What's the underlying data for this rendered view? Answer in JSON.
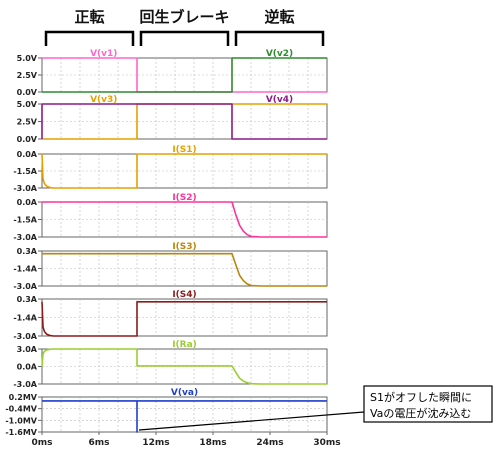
{
  "phases": [
    {
      "label": "正転",
      "t_start": 0,
      "t_end": 10
    },
    {
      "label": "回生ブレーキ",
      "t_start": 10,
      "t_end": 20
    },
    {
      "label": "逆転",
      "t_start": 20,
      "t_end": 30
    }
  ],
  "annotation": {
    "line1": "S1がオフした瞬間に",
    "line2": "Vaの電圧が沈み込む",
    "target_time_ms": 10
  },
  "chart_data": [
    {
      "type": "line",
      "xlim": [
        0,
        30
      ],
      "ylim": [
        0,
        5
      ],
      "yticks": [
        "5.0V",
        "2.5V",
        "0.0V"
      ],
      "grid": true,
      "series": [
        {
          "name": "V(v1)",
          "color": "#ff66cc",
          "x": [
            0,
            10,
            10,
            30
          ],
          "y": [
            5,
            5,
            0,
            0
          ]
        },
        {
          "name": "V(v2)",
          "color": "#2e8b2e",
          "x": [
            0,
            20,
            20,
            30
          ],
          "y": [
            0,
            0,
            5,
            5
          ]
        }
      ]
    },
    {
      "type": "line",
      "xlim": [
        0,
        30
      ],
      "ylim": [
        0,
        5
      ],
      "yticks": [
        "5.0V",
        "2.5V",
        "0.0V"
      ],
      "grid": true,
      "series": [
        {
          "name": "V(v3)",
          "color": "#e6a000",
          "x": [
            0,
            10,
            10,
            30
          ],
          "y": [
            0,
            0,
            5,
            5
          ]
        },
        {
          "name": "V(v4)",
          "color": "#8b1a8b",
          "x": [
            0,
            0,
            20,
            20,
            30
          ],
          "y": [
            0,
            5,
            5,
            0,
            0
          ]
        }
      ]
    },
    {
      "type": "line",
      "xlim": [
        0,
        30
      ],
      "ylim": [
        -3,
        0
      ],
      "yticks": [
        "0.0A",
        "-1.5A",
        "-3.0A"
      ],
      "grid": true,
      "series": [
        {
          "name": "I(S1)",
          "color": "#e6a000",
          "x": [
            0,
            0.1,
            0.25,
            0.5,
            0.8,
            1.2,
            2,
            10,
            10,
            30
          ],
          "y": [
            0,
            -2.2,
            -2.6,
            -2.85,
            -2.95,
            -3.0,
            -3.0,
            -3.0,
            0,
            0
          ]
        }
      ]
    },
    {
      "type": "line",
      "xlim": [
        0,
        30
      ],
      "ylim": [
        -3,
        0
      ],
      "yticks": [
        "0.0A",
        "-1.5A",
        "-3.0A"
      ],
      "grid": true,
      "series": [
        {
          "name": "I(S2)",
          "color": "#ff3399",
          "x": [
            0,
            20,
            20.4,
            20.8,
            21.2,
            21.6,
            22,
            23,
            30
          ],
          "y": [
            0,
            0,
            -1.1,
            -2.0,
            -2.5,
            -2.8,
            -2.95,
            -3.0,
            -3.0
          ]
        }
      ]
    },
    {
      "type": "line",
      "xlim": [
        0,
        30
      ],
      "ylim": [
        -3,
        0.3
      ],
      "yticks": [
        "0.3A",
        "-1.4A",
        "-3.0A"
      ],
      "grid": true,
      "series": [
        {
          "name": "I(S3)",
          "color": "#b8860b",
          "x": [
            0,
            20,
            20.4,
            20.8,
            21.2,
            21.6,
            22,
            23,
            30
          ],
          "y": [
            0.05,
            0.05,
            -1.0,
            -2.0,
            -2.5,
            -2.8,
            -2.95,
            -3.0,
            -3.0
          ]
        }
      ]
    },
    {
      "type": "line",
      "xlim": [
        0,
        30
      ],
      "ylim": [
        -3,
        0.3
      ],
      "yticks": [
        "0.3A",
        "-1.4A",
        "-3.0A"
      ],
      "grid": true,
      "series": [
        {
          "name": "I(S4)",
          "color": "#8b1a1a",
          "x": [
            0,
            0.1,
            0.25,
            0.5,
            0.8,
            1.2,
            2,
            10,
            10,
            30
          ],
          "y": [
            0.05,
            -2.2,
            -2.6,
            -2.85,
            -2.95,
            -3.0,
            -3.0,
            -3.0,
            0.05,
            0.05
          ]
        }
      ]
    },
    {
      "type": "line",
      "xlim": [
        0,
        30
      ],
      "ylim": [
        -3,
        3
      ],
      "yticks": [
        "3.0A",
        "0.0A",
        "-3.0A"
      ],
      "grid": true,
      "series": [
        {
          "name": "I(Ra)",
          "color": "#9acd32",
          "x": [
            0,
            0.1,
            0.25,
            0.5,
            0.8,
            1.2,
            2,
            10,
            10,
            20,
            20.4,
            20.8,
            21.2,
            21.6,
            22,
            23,
            30
          ],
          "y": [
            0,
            2.2,
            2.6,
            2.85,
            2.95,
            3.0,
            3.0,
            3.0,
            0.1,
            0.1,
            -1.0,
            -2.0,
            -2.5,
            -2.8,
            -2.95,
            -3.0,
            -3.0
          ]
        }
      ]
    },
    {
      "type": "line",
      "xlim": [
        0,
        30
      ],
      "ylim": [
        -1.6,
        0.2
      ],
      "yticks": [
        "0.2MV",
        "-0.4MV",
        "-1.0MV",
        "-1.6MV"
      ],
      "xticks": [
        "0ms",
        "6ms",
        "12ms",
        "18ms",
        "24ms",
        "30ms"
      ],
      "grid": true,
      "series": [
        {
          "name": "V(va)",
          "color": "#1f3fcc",
          "x": [
            0,
            10,
            10,
            10,
            30
          ],
          "y": [
            0,
            0,
            -1.6,
            0,
            0
          ]
        }
      ]
    }
  ]
}
